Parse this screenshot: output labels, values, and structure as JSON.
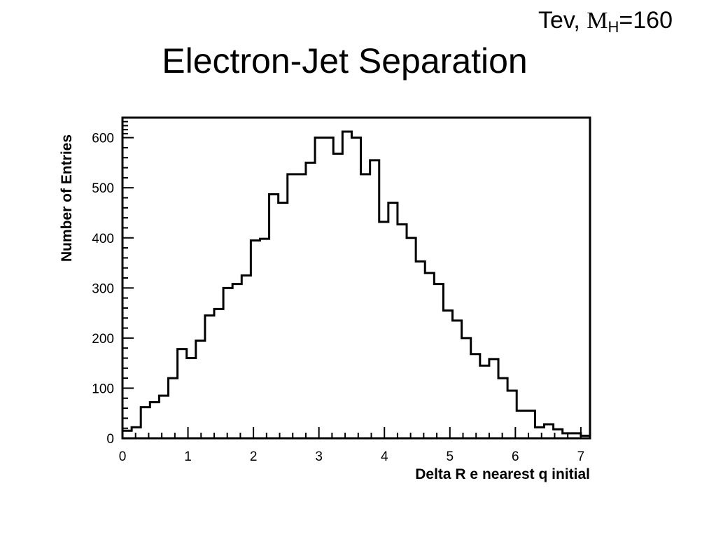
{
  "slide": {
    "title": "Electron-Jet Separation",
    "note_prefix": "Tev,",
    "note_symbol": "M",
    "note_subscript": "H",
    "note_suffix": "=160"
  },
  "chart_data": {
    "type": "histogram",
    "title": "",
    "xlabel": "Delta R e nearest q initial",
    "ylabel": "Number of Entries",
    "xlim": [
      0,
      7.14
    ],
    "ylim": [
      0,
      640
    ],
    "x_ticks": [
      0,
      1,
      2,
      3,
      4,
      5,
      6,
      7
    ],
    "y_ticks": [
      0,
      100,
      200,
      300,
      400,
      500,
      600
    ],
    "bin_width": 0.14,
    "bins_start": 0,
    "values": [
      15,
      22,
      62,
      72,
      85,
      120,
      178,
      160,
      195,
      245,
      258,
      300,
      308,
      325,
      395,
      398,
      487,
      470,
      527,
      527,
      550,
      600,
      600,
      568,
      612,
      600,
      527,
      555,
      432,
      470,
      427,
      400,
      353,
      330,
      308,
      255,
      235,
      200,
      168,
      145,
      158,
      120,
      95,
      55,
      55,
      22,
      28,
      18,
      10,
      10,
      5
    ],
    "line_color": "#000000",
    "grid": false,
    "legend": "none"
  }
}
